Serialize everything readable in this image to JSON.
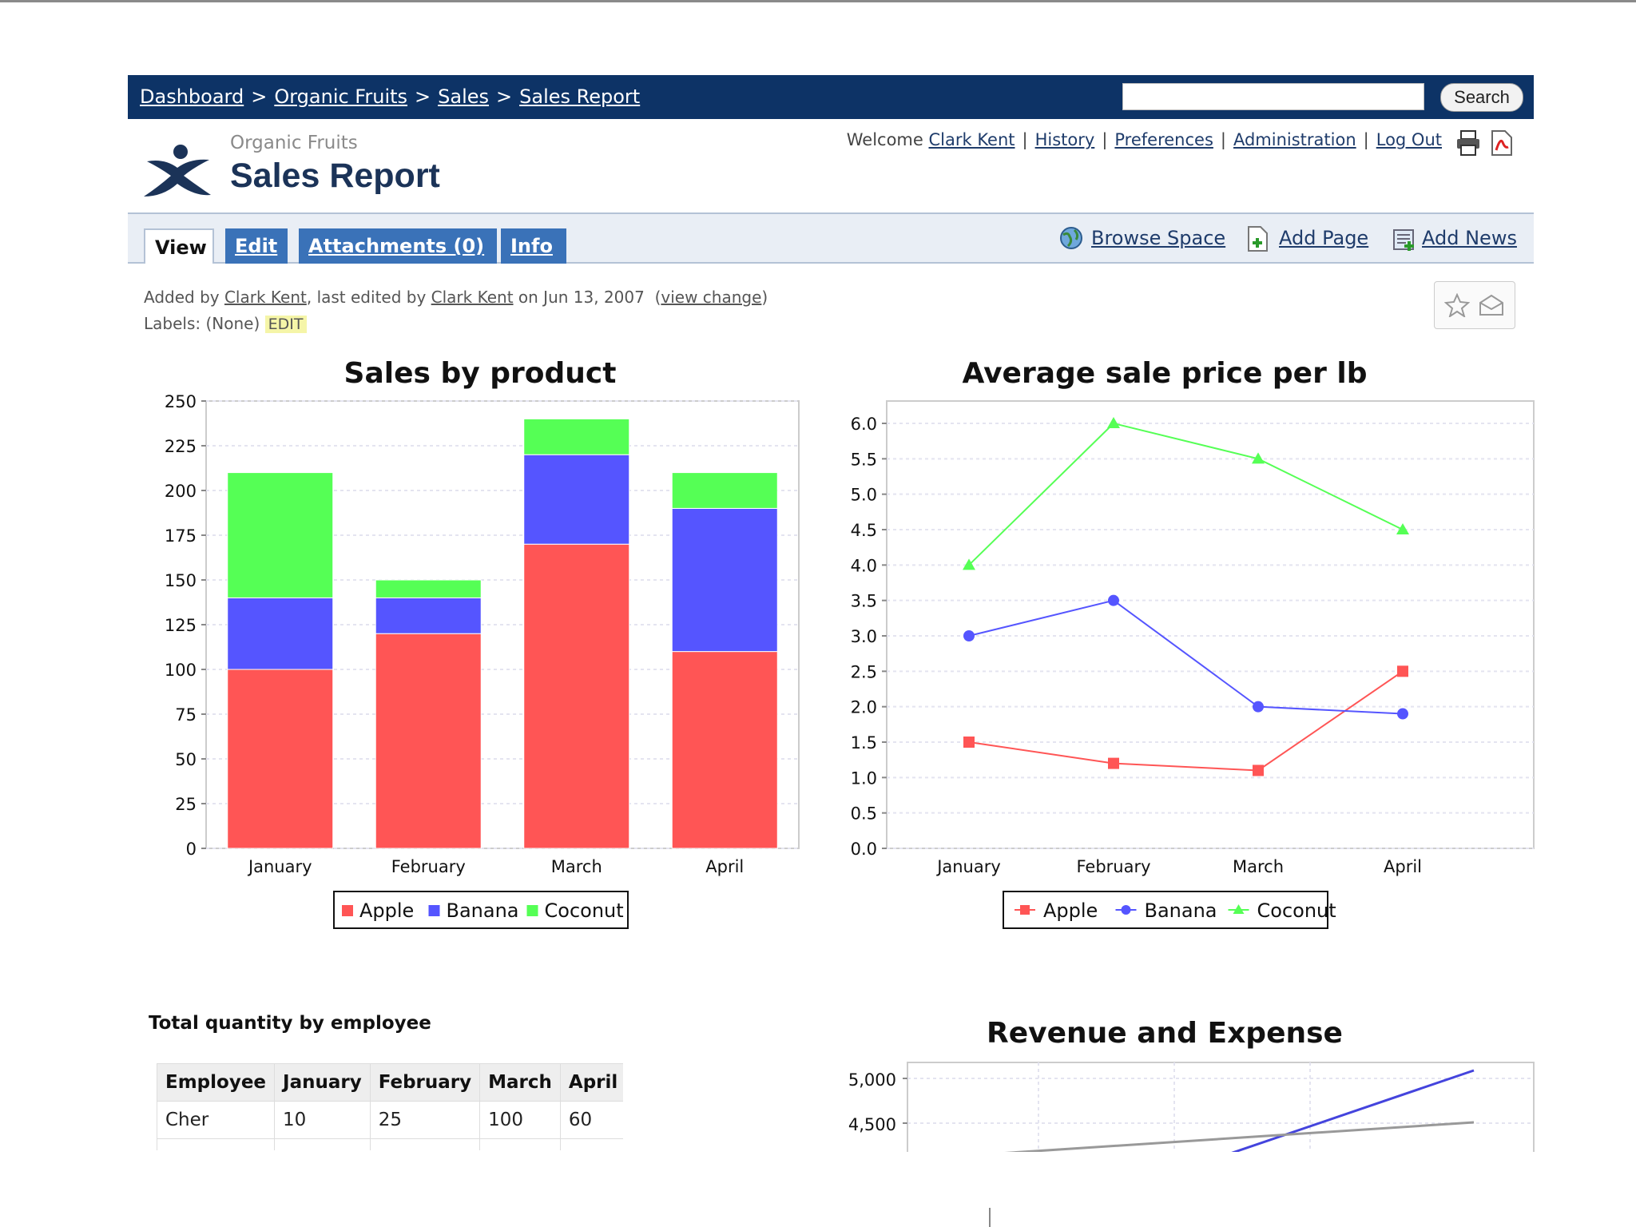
{
  "nav": {
    "breadcrumbs": [
      "Dashboard",
      "Organic Fruits",
      "Sales",
      "Sales Report"
    ],
    "separator": ">",
    "search_placeholder": "",
    "search_label": "Search"
  },
  "header": {
    "space_name": "Organic Fruits",
    "title": "Sales Report",
    "welcome": "Welcome",
    "user": "Clark Kent",
    "links": [
      "History",
      "Preferences",
      "Administration",
      "Log Out"
    ]
  },
  "tabs": [
    "View",
    "Edit",
    "Attachments (0)",
    "Info"
  ],
  "toolbar": {
    "browse_space": "Browse Space",
    "add_page": "Add Page",
    "add_news": "Add News"
  },
  "meta": {
    "added_by": "Added by",
    "author": "Clark Kent",
    "last_edited_by": ", last edited by",
    "editor": "Clark Kent",
    "date": "on Jun 13, 2007",
    "view_change": "view change",
    "labels_prefix": "Labels:",
    "labels_value": "(None)",
    "edit_label": "EDIT"
  },
  "colors": {
    "apple": "#ff5555",
    "banana": "#5555ff",
    "coconut": "#55ff55",
    "nav": "#0d3366"
  },
  "chart_data": [
    {
      "type": "bar",
      "stacked": true,
      "title": "Sales by product",
      "categories": [
        "January",
        "February",
        "March",
        "April"
      ],
      "series": [
        {
          "name": "Apple",
          "values": [
            100,
            120,
            170,
            110
          ]
        },
        {
          "name": "Banana",
          "values": [
            40,
            20,
            50,
            80
          ]
        },
        {
          "name": "Coconut",
          "values": [
            70,
            10,
            20,
            20
          ]
        }
      ],
      "ylim": [
        0,
        250
      ],
      "yticks": [
        0,
        25,
        50,
        75,
        100,
        125,
        150,
        175,
        200,
        225,
        250
      ],
      "legend": "bottom"
    },
    {
      "type": "line",
      "title": "Average sale price per lb",
      "categories": [
        "January",
        "February",
        "March",
        "April"
      ],
      "series": [
        {
          "name": "Apple",
          "values": [
            1.5,
            1.2,
            1.1,
            2.5
          ]
        },
        {
          "name": "Banana",
          "values": [
            3.0,
            3.5,
            2.0,
            1.9
          ]
        },
        {
          "name": "Coconut",
          "values": [
            4.0,
            6.0,
            5.5,
            4.5
          ]
        }
      ],
      "ylim": [
        0,
        6.0
      ],
      "yticks": [
        "0.0",
        "0.5",
        "1.0",
        "1.5",
        "2.0",
        "2.5",
        "3.0",
        "3.5",
        "4.0",
        "4.5",
        "5.0",
        "5.5",
        "6.0"
      ],
      "legend": "bottom"
    },
    {
      "type": "line",
      "title": "Revenue and Expense",
      "yticks": [
        "5,000",
        "4,500"
      ],
      "note": "partially visible"
    }
  ],
  "table": {
    "title": "Total quantity by employee",
    "headers": [
      "Employee",
      "January",
      "February",
      "March",
      "April"
    ],
    "rows": [
      [
        "Cher",
        "10",
        "25",
        "100",
        "60"
      ]
    ]
  }
}
